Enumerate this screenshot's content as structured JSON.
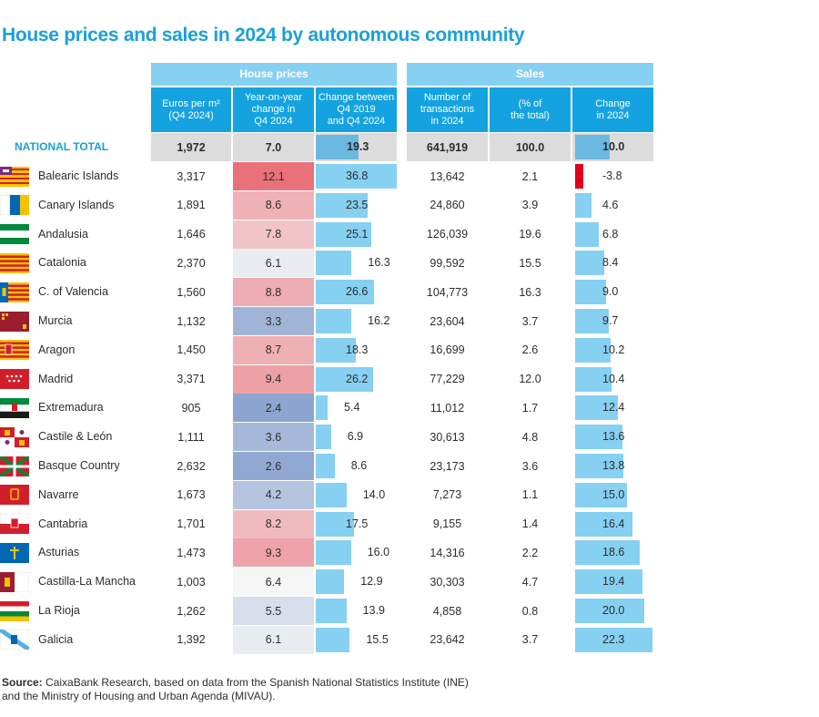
{
  "title": "House prices and sales in 2024 by autonomous community",
  "groups": {
    "prices": "House prices",
    "sales": "Sales"
  },
  "columns": {
    "euros_l1": "Euros per m²",
    "euros_l2": "(Q4 2024)",
    "yoy_l1": "Year-on-year",
    "yoy_l2": "change in",
    "yoy_l3": "Q4 2024",
    "chg_l1": "Change between",
    "chg_l2": "Q4 2019",
    "chg_l3": "and Q4 2024",
    "num_l1": "Number of",
    "num_l2": "transactions",
    "num_l3": "in 2024",
    "pct_l1": "(% of",
    "pct_l2": "the total)",
    "sc_l1": "Change",
    "sc_l2": "in 2024"
  },
  "national": {
    "label": "NATIONAL TOTAL",
    "euros": "1,972",
    "yoy": "7.0",
    "chg": "19.3",
    "num": "641,919",
    "pct": "100.0",
    "sc": "10.0"
  },
  "source_label": "Source:",
  "source_l1": " CaixaBank Research, based on data from the Spanish National Statistics Institute (INE)",
  "source_l2": "and the Ministry of Housing and Urban Agenda (MIVAU).",
  "colors": {
    "title": "#1aa0d8",
    "header_light": "#86d0f2",
    "header_dark": "#14a3e0",
    "bar": "#86d0f2",
    "negative_bar": "#e3001b",
    "national_bg": "#dcdcdc"
  },
  "chart_data": {
    "type": "table",
    "title": "House prices and sales in 2024 by autonomous community",
    "columns": [
      "Euros per m² (Q4 2024)",
      "Year-on-year change in Q4 2024",
      "Change between Q4 2019 and Q4 2024",
      "Number of transactions in 2024",
      "(% of the total)",
      "Change in 2024"
    ],
    "rows": [
      {
        "name": "Balearic Islands",
        "euros": "3,317",
        "yoy": "12.1",
        "chg": "36.8",
        "num": "13,642",
        "pct": "2.1",
        "sc": "-3.8"
      },
      {
        "name": "Canary Islands",
        "euros": "1,891",
        "yoy": "8.6",
        "chg": "23.5",
        "num": "24,860",
        "pct": "3.9",
        "sc": "4.6"
      },
      {
        "name": "Andalusia",
        "euros": "1,646",
        "yoy": "7.8",
        "chg": "25.1",
        "num": "126,039",
        "pct": "19.6",
        "sc": "6.8"
      },
      {
        "name": "Catalonia",
        "euros": "2,370",
        "yoy": "6.1",
        "chg": "16.3",
        "num": "99,592",
        "pct": "15.5",
        "sc": "8.4"
      },
      {
        "name": "C. of Valencia",
        "euros": "1,560",
        "yoy": "8.8",
        "chg": "26.6",
        "num": "104,773",
        "pct": "16.3",
        "sc": "9.0"
      },
      {
        "name": "Murcia",
        "euros": "1,132",
        "yoy": "3.3",
        "chg": "16.2",
        "num": "23,604",
        "pct": "3.7",
        "sc": "9.7"
      },
      {
        "name": "Aragon",
        "euros": "1,450",
        "yoy": "8.7",
        "chg": "18.3",
        "num": "16,699",
        "pct": "2.6",
        "sc": "10.2"
      },
      {
        "name": "Madrid",
        "euros": "3,371",
        "yoy": "9.4",
        "chg": "26.2",
        "num": "77,229",
        "pct": "12.0",
        "sc": "10.4"
      },
      {
        "name": "Extremadura",
        "euros": "905",
        "yoy": "2.4",
        "chg": "5.4",
        "num": "11,012",
        "pct": "1.7",
        "sc": "12.4"
      },
      {
        "name": "Castile & León",
        "euros": "1,111",
        "yoy": "3.6",
        "chg": "6.9",
        "num": "30,613",
        "pct": "4.8",
        "sc": "13.6"
      },
      {
        "name": "Basque Country",
        "euros": "2,632",
        "yoy": "2.6",
        "chg": "8.6",
        "num": "23,173",
        "pct": "3.6",
        "sc": "13.8"
      },
      {
        "name": "Navarre",
        "euros": "1,673",
        "yoy": "4.2",
        "chg": "14.0",
        "num": "7,273",
        "pct": "1.1",
        "sc": "15.0"
      },
      {
        "name": "Cantabria",
        "euros": "1,701",
        "yoy": "8.2",
        "chg": "17.5",
        "num": "9,155",
        "pct": "1.4",
        "sc": "16.4"
      },
      {
        "name": "Asturias",
        "euros": "1,473",
        "yoy": "9.3",
        "chg": "16.0",
        "num": "14,316",
        "pct": "2.2",
        "sc": "18.6"
      },
      {
        "name": "Castilla-La Mancha",
        "euros": "1,003",
        "yoy": "6.4",
        "chg": "12.9",
        "num": "30,303",
        "pct": "4.7",
        "sc": "19.4"
      },
      {
        "name": "La Rioja",
        "euros": "1,262",
        "yoy": "5.5",
        "chg": "13.9",
        "num": "4,858",
        "pct": "0.8",
        "sc": "20.0"
      },
      {
        "name": "Galicia",
        "euros": "1,392",
        "yoy": "6.1",
        "chg": "15.5",
        "num": "23,642",
        "pct": "3.7",
        "sc": "22.3"
      }
    ]
  }
}
